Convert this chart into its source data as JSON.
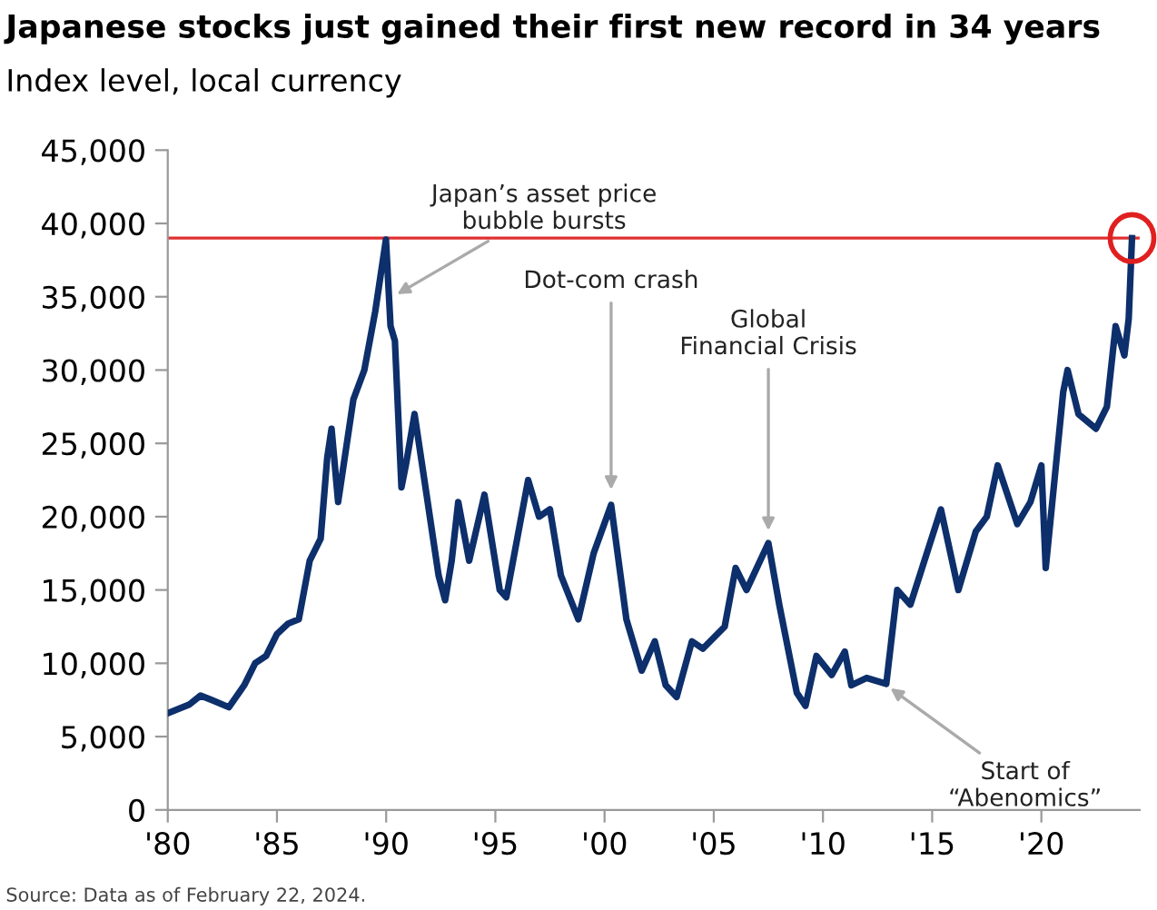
{
  "chart_data": {
    "type": "line",
    "title": "Japanese stocks just gained their first new record in 34 years",
    "subtitle": "Index level, local currency",
    "x": [
      1980,
      1981,
      1981.5,
      1982,
      1982.8,
      1983.5,
      1984,
      1984.5,
      1985,
      1985.5,
      1986,
      1986.5,
      1987,
      1987.3,
      1987.5,
      1987.8,
      1988,
      1988.5,
      1989,
      1989.5,
      1989.99,
      1990.2,
      1990.4,
      1990.7,
      1990.9,
      1991.3,
      1991.8,
      1992.4,
      1992.7,
      1993,
      1993.3,
      1993.8,
      1994.5,
      1995.2,
      1995.5,
      1996.5,
      1997,
      1997.5,
      1998,
      1998.8,
      1999.5,
      2000.3,
      2001,
      2001.7,
      2002.3,
      2002.8,
      2003.3,
      2004,
      2004.5,
      2005.5,
      2006,
      2006.5,
      2007.5,
      2008,
      2008.8,
      2009.2,
      2009.7,
      2010.4,
      2011,
      2011.3,
      2012,
      2012.9,
      2013.4,
      2014,
      2015.4,
      2016.2,
      2017,
      2017.5,
      2018,
      2018.9,
      2019.5,
      2020,
      2020.2,
      2020.6,
      2021,
      2021.2,
      2021.7,
      2022.5,
      2023,
      2023.4,
      2023.8,
      2024,
      2024.15
    ],
    "series": [
      {
        "color": "#0d2f6b",
        "values": [
          6600,
          7200,
          7800,
          7500,
          7000,
          8500,
          10000,
          10500,
          12000,
          12700,
          13000,
          17000,
          18500,
          24000,
          26000,
          21000,
          23000,
          28000,
          30000,
          34000,
          38900,
          33000,
          32000,
          22000,
          23500,
          27000,
          22000,
          16000,
          14300,
          17000,
          21000,
          17000,
          21500,
          15000,
          14500,
          22500,
          20000,
          20500,
          16000,
          13000,
          17500,
          20800,
          13000,
          9500,
          11500,
          8500,
          7700,
          11500,
          11000,
          12500,
          16500,
          15000,
          18200,
          14000,
          8000,
          7100,
          10500,
          9200,
          10800,
          8500,
          9000,
          8600,
          15000,
          14000,
          20500,
          15000,
          19000,
          20000,
          23500,
          19500,
          21000,
          23500,
          16500,
          22500,
          28500,
          30000,
          27000,
          26000,
          27500,
          33000,
          31000,
          33500,
          39000
        ]
      }
    ],
    "xlim": [
      1980,
      2024.5
    ],
    "xticks": [
      {
        "value": 1980,
        "label": "'80"
      },
      {
        "value": 1985,
        "label": "'85"
      },
      {
        "value": 1990,
        "label": "'90"
      },
      {
        "value": 1995,
        "label": "'95"
      },
      {
        "value": 2000,
        "label": "'00"
      },
      {
        "value": 2005,
        "label": "'05"
      },
      {
        "value": 2010,
        "label": "'10"
      },
      {
        "value": 2015,
        "label": "'15"
      },
      {
        "value": 2020,
        "label": "'20"
      }
    ],
    "ylim": [
      0,
      45000
    ],
    "yticks": [
      {
        "value": 0,
        "label": "0"
      },
      {
        "value": 5000,
        "label": "5,000"
      },
      {
        "value": 10000,
        "label": "10,000"
      },
      {
        "value": 15000,
        "label": "15,000"
      },
      {
        "value": 20000,
        "label": "20,000"
      },
      {
        "value": 25000,
        "label": "25,000"
      },
      {
        "value": 30000,
        "label": "30,000"
      },
      {
        "value": 35000,
        "label": "35,000"
      },
      {
        "value": 40000,
        "label": "40,000"
      },
      {
        "value": 45000,
        "label": "45,000"
      }
    ],
    "ref_lines": [
      {
        "axis": "y",
        "value": 39000,
        "color": "#e03030"
      }
    ],
    "grid": false,
    "annotations": [
      {
        "text": "Japan’s asset price\nbubble bursts",
        "x": 1990.3,
        "y": 35000
      },
      {
        "text": "Dot-com crash",
        "x": 2000.3,
        "y": 21500
      },
      {
        "text": "Global\nFinancial Crisis",
        "x": 2007.5,
        "y": 18700
      },
      {
        "text": "Start of\n“Abenomics”",
        "x": 2012.9,
        "y": 8500
      },
      "Source: Data as of February 22, 2024."
    ]
  }
}
